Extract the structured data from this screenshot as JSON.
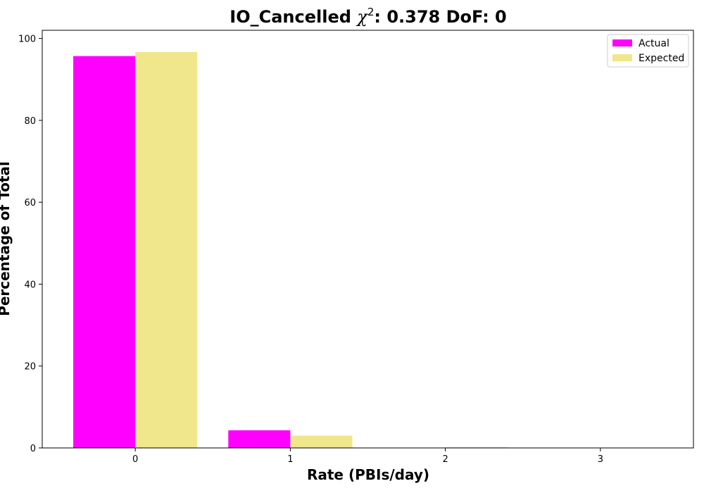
{
  "chart_data": {
    "type": "bar",
    "title_prefix": "IO_Cancelled ",
    "title_chi": "χ",
    "title_sup": "2",
    "title_suffix": ": 0.378 DoF: 0",
    "xlabel": "Rate (PBIs/day)",
    "ylabel": "Percentage of Total",
    "categories": [
      "0",
      "1",
      "2",
      "3"
    ],
    "x": [
      0,
      1,
      2,
      3
    ],
    "xlim": [
      -0.6,
      3.6
    ],
    "ylim": [
      0,
      102
    ],
    "yticks": [
      0,
      20,
      40,
      60,
      80,
      100
    ],
    "grid": false,
    "legend_position": "top-right",
    "series": [
      {
        "name": "Actual",
        "color": "#ff00ff",
        "values": [
          95.7,
          4.3,
          0,
          0
        ]
      },
      {
        "name": "Expected",
        "color": "#f0e68c",
        "values": [
          96.7,
          3.0,
          0.2,
          0
        ]
      }
    ]
  }
}
